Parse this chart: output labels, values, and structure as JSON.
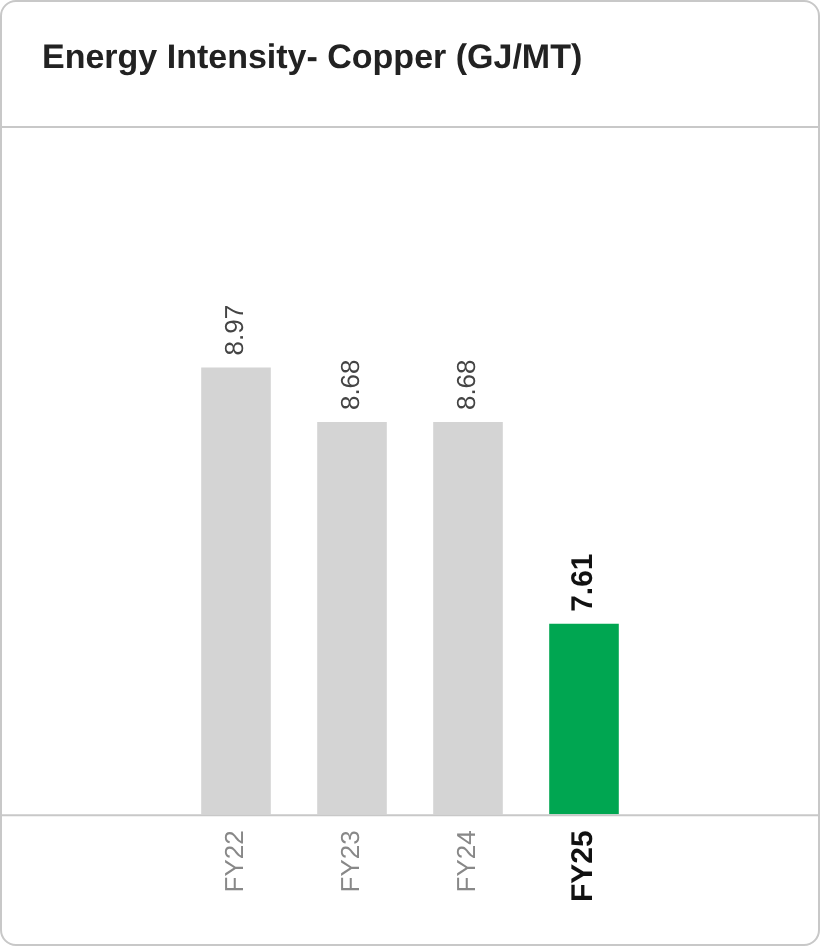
{
  "chart_data": {
    "type": "bar",
    "title": "Energy Intensity- Copper (GJ/MT)",
    "categories": [
      "FY22",
      "FY23",
      "FY24",
      "FY25"
    ],
    "values": [
      8.97,
      8.68,
      8.68,
      7.61
    ],
    "colors": [
      "#d4d4d4",
      "#d4d4d4",
      "#d4d4d4",
      "#00a651"
    ],
    "ylim": [
      6.6,
      10.25
    ],
    "tick_labels": "x",
    "data_labels": true,
    "grid": false,
    "legend": false
  }
}
